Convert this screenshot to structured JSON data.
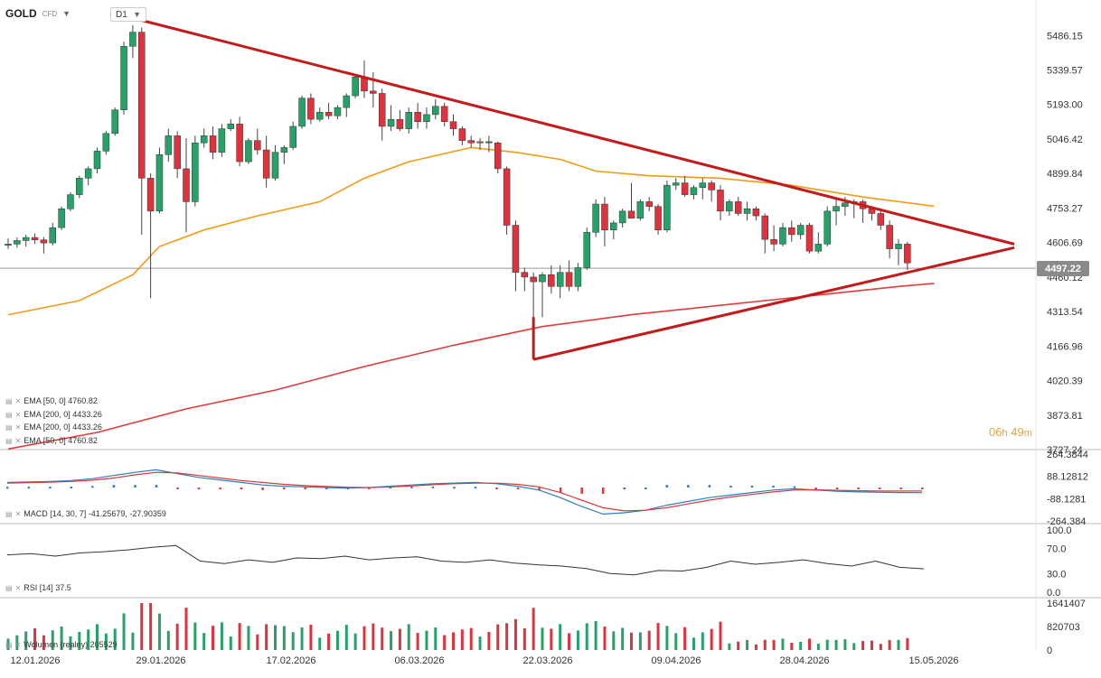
{
  "header": {
    "symbol": "GOLD",
    "instrument_type": "CFD",
    "timeframe": "D1"
  },
  "timer": {
    "hours": "06",
    "h_unit": "h",
    "minutes": "49",
    "m_unit": "m"
  },
  "indicators": {
    "ema_labels": [
      "EMA [50, 0] 4760.82",
      "EMA [200, 0] 4433.26",
      "EMA [200, 0] 4433.26",
      "EMA [50, 0] 4760.82"
    ],
    "macd_label": "MACD [14, 30, 7] -41.25679, -27.90359",
    "rsi_label": "RSI [14] 37.5",
    "volume_label": "Wolumen (realny) 205529"
  },
  "price_axis": [
    "5486.15",
    "5339.57",
    "5193.00",
    "5046.42",
    "4899.84",
    "4753.27",
    "4606.69",
    "4460.12",
    "4313.54",
    "4166.96",
    "4020.39",
    "3873.81",
    "3727.24"
  ],
  "macd_axis": [
    "264.3844",
    "88.12812",
    "-88.1281",
    "-264.384"
  ],
  "rsi_axis": [
    "100.0",
    "70.0",
    "30.0",
    "0.0"
  ],
  "volume_axis": [
    "1641407",
    "820703",
    "0"
  ],
  "dates": [
    "12.01.2026",
    "29.01.2026",
    "17.02.2026",
    "06.03.2026",
    "22.03.2026",
    "09.04.2026",
    "28.04.2026",
    "15.05.2026"
  ],
  "current_price": "4497.22",
  "colors": {
    "bull": "#26a269",
    "bear": "#e0323c",
    "ema50": "#f39c12",
    "ema200": "#e03c3c",
    "trendline": "#c41a1a",
    "macd_line": "#2a7fc1",
    "signal_line": "#d93a3a",
    "rsi_line": "#333333"
  },
  "chart_data": {
    "type": "candlestick",
    "symbol": "GOLD",
    "timeframe": "D1",
    "x_ticks": [
      "12.01.2026",
      "29.01.2026",
      "17.02.2026",
      "06.03.2026",
      "22.03.2026",
      "09.04.2026",
      "28.04.2026",
      "15.05.2026"
    ],
    "ylim": [
      3727.24,
      5560
    ],
    "candles_ohlc": [
      [
        4595,
        4625,
        4580,
        4600
      ],
      [
        4600,
        4628,
        4585,
        4615
      ],
      [
        4615,
        4640,
        4590,
        4628
      ],
      [
        4628,
        4645,
        4600,
        4618
      ],
      [
        4618,
        4630,
        4560,
        4605
      ],
      [
        4605,
        4690,
        4595,
        4670
      ],
      [
        4670,
        4760,
        4660,
        4750
      ],
      [
        4750,
        4820,
        4740,
        4810
      ],
      [
        4810,
        4890,
        4795,
        4880
      ],
      [
        4880,
        4930,
        4850,
        4920
      ],
      [
        4920,
        5010,
        4900,
        4995
      ],
      [
        4995,
        5080,
        4980,
        5070
      ],
      [
        5070,
        5180,
        5060,
        5170
      ],
      [
        5170,
        5460,
        5150,
        5440
      ],
      [
        5440,
        5530,
        5390,
        5500
      ],
      [
        5500,
        5520,
        4640,
        4880
      ],
      [
        4880,
        4900,
        4370,
        4740
      ],
      [
        4740,
        5010,
        4730,
        4980
      ],
      [
        4980,
        5090,
        4950,
        5060
      ],
      [
        5060,
        5080,
        4880,
        4920
      ],
      [
        4920,
        5050,
        4650,
        4780
      ],
      [
        4780,
        5060,
        4760,
        5030
      ],
      [
        5030,
        5090,
        5010,
        5060
      ],
      [
        5060,
        5100,
        4960,
        4990
      ],
      [
        4990,
        5110,
        4970,
        5090
      ],
      [
        5090,
        5130,
        5080,
        5110
      ],
      [
        5110,
        5140,
        4930,
        4950
      ],
      [
        4950,
        5050,
        4940,
        5040
      ],
      [
        5040,
        5090,
        4980,
        5000
      ],
      [
        5000,
        5060,
        4840,
        4880
      ],
      [
        4880,
        5020,
        4870,
        4990
      ],
      [
        4990,
        5020,
        4940,
        5010
      ],
      [
        5010,
        5120,
        5000,
        5100
      ],
      [
        5100,
        5230,
        5090,
        5220
      ],
      [
        5220,
        5240,
        5110,
        5130
      ],
      [
        5130,
        5180,
        5120,
        5160
      ],
      [
        5160,
        5200,
        5130,
        5145
      ],
      [
        5145,
        5190,
        5130,
        5180
      ],
      [
        5180,
        5240,
        5140,
        5230
      ],
      [
        5230,
        5320,
        5220,
        5310
      ],
      [
        5310,
        5380,
        5220,
        5250
      ],
      [
        5250,
        5330,
        5180,
        5240
      ],
      [
        5240,
        5260,
        5040,
        5100
      ],
      [
        5100,
        5190,
        5080,
        5130
      ],
      [
        5130,
        5170,
        5080,
        5090
      ],
      [
        5090,
        5180,
        5070,
        5160
      ],
      [
        5160,
        5200,
        5090,
        5120
      ],
      [
        5120,
        5180,
        5090,
        5150
      ],
      [
        5150,
        5215,
        5130,
        5185
      ],
      [
        5185,
        5200,
        5100,
        5120
      ],
      [
        5120,
        5150,
        5060,
        5090
      ],
      [
        5090,
        5100,
        5020,
        5040
      ],
      [
        5040,
        5060,
        5010,
        5030
      ],
      [
        5030,
        5050,
        5000,
        5035
      ],
      [
        5035,
        5060,
        4990,
        5030
      ],
      [
        5030,
        5035,
        4900,
        4920
      ],
      [
        4920,
        4930,
        4640,
        4680
      ],
      [
        4680,
        4700,
        4400,
        4480
      ],
      [
        4480,
        4500,
        4400,
        4460
      ],
      [
        4460,
        4480,
        4110,
        4440
      ],
      [
        4440,
        4480,
        4290,
        4470
      ],
      [
        4470,
        4510,
        4390,
        4420
      ],
      [
        4420,
        4510,
        4370,
        4480
      ],
      [
        4480,
        4530,
        4400,
        4420
      ],
      [
        4420,
        4520,
        4400,
        4500
      ],
      [
        4500,
        4670,
        4490,
        4650
      ],
      [
        4650,
        4790,
        4630,
        4770
      ],
      [
        4770,
        4800,
        4590,
        4660
      ],
      [
        4660,
        4700,
        4620,
        4690
      ],
      [
        4690,
        4750,
        4670,
        4740
      ],
      [
        4740,
        4860,
        4720,
        4710
      ],
      [
        4710,
        4790,
        4700,
        4780
      ],
      [
        4780,
        4800,
        4740,
        4760
      ],
      [
        4760,
        4770,
        4640,
        4660
      ],
      [
        4660,
        4870,
        4650,
        4850
      ],
      [
        4850,
        4880,
        4830,
        4860
      ],
      [
        4860,
        4890,
        4800,
        4810
      ],
      [
        4810,
        4850,
        4790,
        4840
      ],
      [
        4840,
        4880,
        4790,
        4860
      ],
      [
        4860,
        4870,
        4780,
        4830
      ],
      [
        4830,
        4850,
        4700,
        4740
      ],
      [
        4740,
        4790,
        4720,
        4780
      ],
      [
        4780,
        4800,
        4720,
        4730
      ],
      [
        4730,
        4780,
        4700,
        4750
      ],
      [
        4750,
        4760,
        4700,
        4720
      ],
      [
        4720,
        4730,
        4560,
        4620
      ],
      [
        4620,
        4680,
        4570,
        4600
      ],
      [
        4600,
        4690,
        4590,
        4670
      ],
      [
        4670,
        4700,
        4610,
        4640
      ],
      [
        4640,
        4690,
        4620,
        4680
      ],
      [
        4680,
        4690,
        4560,
        4570
      ],
      [
        4570,
        4650,
        4560,
        4600
      ],
      [
        4600,
        4760,
        4590,
        4740
      ],
      [
        4740,
        4790,
        4680,
        4760
      ],
      [
        4760,
        4800,
        4720,
        4775
      ],
      [
        4775,
        4790,
        4710,
        4780
      ],
      [
        4780,
        4790,
        4690,
        4750
      ],
      [
        4750,
        4760,
        4700,
        4730
      ],
      [
        4730,
        4740,
        4660,
        4680
      ],
      [
        4680,
        4700,
        4540,
        4580
      ],
      [
        4580,
        4620,
        4510,
        4600
      ],
      [
        4600,
        4610,
        4490,
        4520
      ]
    ],
    "ema50": [
      [
        0,
        4300
      ],
      [
        8,
        4360
      ],
      [
        14,
        4470
      ],
      [
        17,
        4590
      ],
      [
        22,
        4660
      ],
      [
        28,
        4720
      ],
      [
        35,
        4780
      ],
      [
        40,
        4880
      ],
      [
        45,
        4950
      ],
      [
        52,
        5010
      ],
      [
        57,
        4990
      ],
      [
        62,
        4960
      ],
      [
        66,
        4910
      ],
      [
        72,
        4890
      ],
      [
        80,
        4880
      ],
      [
        88,
        4850
      ],
      [
        96,
        4800
      ],
      [
        104,
        4760.82
      ]
    ],
    "ema200": [
      [
        0,
        3730
      ],
      [
        10,
        3800
      ],
      [
        20,
        3900
      ],
      [
        30,
        3980
      ],
      [
        40,
        4080
      ],
      [
        50,
        4170
      ],
      [
        60,
        4250
      ],
      [
        70,
        4300
      ],
      [
        80,
        4340
      ],
      [
        90,
        4380
      ],
      [
        100,
        4420
      ],
      [
        104,
        4433.26
      ]
    ],
    "trendlines": [
      {
        "from": [
          14,
          5560
        ],
        "to": [
          113,
          4600
        ]
      },
      {
        "from": [
          59,
          4110
        ],
        "to": [
          113,
          4585
        ]
      },
      {
        "from": [
          59,
          4110
        ],
        "to": [
          59,
          4290
        ]
      }
    ],
    "macd": [
      40,
      44,
      48,
      55,
      70,
      95,
      120,
      140,
      110,
      80,
      60,
      40,
      20,
      10,
      5,
      0,
      -5,
      0,
      10,
      20,
      30,
      35,
      40,
      30,
      10,
      -20,
      -80,
      -150,
      -210,
      -200,
      -180,
      -140,
      -110,
      -80,
      -60,
      -40,
      -20,
      -10,
      -20,
      -30,
      -35,
      -38,
      -40,
      -41
    ],
    "signal": [
      35,
      38,
      42,
      48,
      58,
      75,
      100,
      120,
      115,
      95,
      75,
      55,
      40,
      25,
      15,
      8,
      2,
      0,
      4,
      12,
      22,
      30,
      34,
      34,
      25,
      5,
      -40,
      -100,
      -160,
      -185,
      -180,
      -160,
      -130,
      -100,
      -75,
      -55,
      -35,
      -20,
      -18,
      -22,
      -26,
      -28,
      -28,
      -27.9
    ],
    "rsi": [
      60,
      62,
      58,
      63,
      65,
      68,
      72,
      75,
      50,
      46,
      52,
      48,
      55,
      54,
      58,
      52,
      55,
      57,
      50,
      48,
      52,
      47,
      44,
      42,
      38,
      30,
      28,
      35,
      34,
      40,
      50,
      45,
      48,
      52,
      46,
      42,
      50,
      40,
      37.5
    ],
    "volume_bull_bear": "mixed, peaking around 1641407"
  }
}
